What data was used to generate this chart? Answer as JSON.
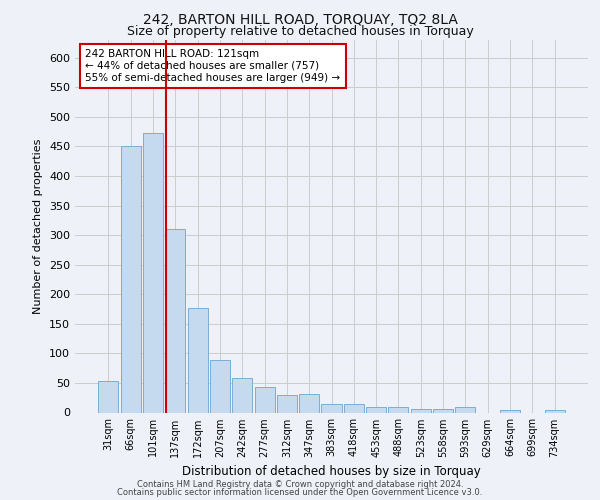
{
  "title_line1": "242, BARTON HILL ROAD, TORQUAY, TQ2 8LA",
  "title_line2": "Size of property relative to detached houses in Torquay",
  "xlabel": "Distribution of detached houses by size in Torquay",
  "ylabel": "Number of detached properties",
  "bar_labels": [
    "31sqm",
    "66sqm",
    "101sqm",
    "137sqm",
    "172sqm",
    "207sqm",
    "242sqm",
    "277sqm",
    "312sqm",
    "347sqm",
    "383sqm",
    "418sqm",
    "453sqm",
    "488sqm",
    "523sqm",
    "558sqm",
    "593sqm",
    "629sqm",
    "664sqm",
    "699sqm",
    "734sqm"
  ],
  "bar_values": [
    54,
    450,
    472,
    311,
    176,
    88,
    58,
    43,
    30,
    31,
    14,
    14,
    10,
    10,
    6,
    6,
    9,
    0,
    5,
    0,
    5
  ],
  "bar_color": "#c5d9ef",
  "bar_edge_color": "#7aaed6",
  "vline_x": 2.58,
  "vline_color": "#cc0000",
  "annotation_text": "242 BARTON HILL ROAD: 121sqm\n← 44% of detached houses are smaller (757)\n55% of semi-detached houses are larger (949) →",
  "annotation_box_color": "#ffffff",
  "annotation_box_edge": "#cc0000",
  "ylim": [
    0,
    630
  ],
  "yticks": [
    0,
    50,
    100,
    150,
    200,
    250,
    300,
    350,
    400,
    450,
    500,
    550,
    600
  ],
  "footer_line1": "Contains HM Land Registry data © Crown copyright and database right 2024.",
  "footer_line2": "Contains public sector information licensed under the Open Government Licence v3.0.",
  "bg_color": "#eef2f8",
  "plot_bg_color": "#eef2f8",
  "title1_fontsize": 10,
  "title2_fontsize": 9
}
